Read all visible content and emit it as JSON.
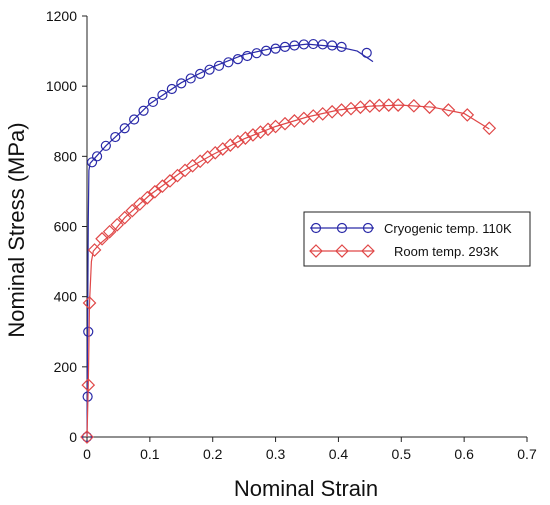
{
  "chart_data": {
    "type": "line",
    "title": "",
    "xlabel": "Nominal Strain",
    "ylabel": "Nominal Stress (MPa)",
    "xlim": [
      0,
      0.7
    ],
    "ylim": [
      0,
      1200
    ],
    "x_ticks": [
      0,
      0.1,
      0.2,
      0.3,
      0.4,
      0.5,
      0.6,
      0.7
    ],
    "x_tick_labels": [
      "0",
      "0.1",
      "0.2",
      "0.3",
      "0.4",
      "0.5",
      "0.6",
      "0.7"
    ],
    "y_ticks": [
      0,
      200,
      400,
      600,
      800,
      1000,
      1200
    ],
    "y_tick_labels": [
      "0",
      "200",
      "400",
      "600",
      "800",
      "1000",
      "1200"
    ],
    "grid": false,
    "legend_position": "center-right",
    "series": [
      {
        "name": "Cryogenic temp. 110K",
        "color": "#2a2aa8",
        "marker": "circle",
        "curve": [
          {
            "x": 0,
            "y": 0
          },
          {
            "x": 0.001,
            "y": 300
          },
          {
            "x": 0.002,
            "y": 620
          },
          {
            "x": 0.003,
            "y": 760
          },
          {
            "x": 0.005,
            "y": 780
          },
          {
            "x": 0.03,
            "y": 830
          },
          {
            "x": 0.06,
            "y": 880
          },
          {
            "x": 0.1,
            "y": 950
          },
          {
            "x": 0.15,
            "y": 1010
          },
          {
            "x": 0.2,
            "y": 1055
          },
          {
            "x": 0.25,
            "y": 1090
          },
          {
            "x": 0.3,
            "y": 1110
          },
          {
            "x": 0.35,
            "y": 1120
          },
          {
            "x": 0.4,
            "y": 1112
          },
          {
            "x": 0.43,
            "y": 1100
          },
          {
            "x": 0.455,
            "y": 1070
          }
        ],
        "markers": [
          {
            "x": 0,
            "y": 0
          },
          {
            "x": 0.001,
            "y": 115
          },
          {
            "x": 0.002,
            "y": 300
          },
          {
            "x": 0.008,
            "y": 783
          },
          {
            "x": 0.016,
            "y": 800
          },
          {
            "x": 0.03,
            "y": 830
          },
          {
            "x": 0.045,
            "y": 855
          },
          {
            "x": 0.06,
            "y": 880
          },
          {
            "x": 0.075,
            "y": 905
          },
          {
            "x": 0.09,
            "y": 930
          },
          {
            "x": 0.105,
            "y": 955
          },
          {
            "x": 0.12,
            "y": 975
          },
          {
            "x": 0.135,
            "y": 992
          },
          {
            "x": 0.15,
            "y": 1008
          },
          {
            "x": 0.165,
            "y": 1022
          },
          {
            "x": 0.18,
            "y": 1035
          },
          {
            "x": 0.195,
            "y": 1047
          },
          {
            "x": 0.21,
            "y": 1058
          },
          {
            "x": 0.225,
            "y": 1068
          },
          {
            "x": 0.24,
            "y": 1077
          },
          {
            "x": 0.255,
            "y": 1086
          },
          {
            "x": 0.27,
            "y": 1094
          },
          {
            "x": 0.285,
            "y": 1101
          },
          {
            "x": 0.3,
            "y": 1107
          },
          {
            "x": 0.315,
            "y": 1112
          },
          {
            "x": 0.33,
            "y": 1116
          },
          {
            "x": 0.345,
            "y": 1119
          },
          {
            "x": 0.36,
            "y": 1120
          },
          {
            "x": 0.375,
            "y": 1119
          },
          {
            "x": 0.39,
            "y": 1116
          },
          {
            "x": 0.405,
            "y": 1112
          },
          {
            "x": 0.445,
            "y": 1095
          }
        ]
      },
      {
        "name": "Room temp. 293K",
        "color": "#e04848",
        "marker": "diamond",
        "curve": [
          {
            "x": 0,
            "y": 0
          },
          {
            "x": 0.002,
            "y": 150
          },
          {
            "x": 0.004,
            "y": 380
          },
          {
            "x": 0.007,
            "y": 500
          },
          {
            "x": 0.01,
            "y": 530
          },
          {
            "x": 0.02,
            "y": 550
          },
          {
            "x": 0.04,
            "y": 580
          },
          {
            "x": 0.06,
            "y": 625
          },
          {
            "x": 0.1,
            "y": 690
          },
          {
            "x": 0.15,
            "y": 755
          },
          {
            "x": 0.2,
            "y": 805
          },
          {
            "x": 0.25,
            "y": 850
          },
          {
            "x": 0.3,
            "y": 885
          },
          {
            "x": 0.35,
            "y": 912
          },
          {
            "x": 0.4,
            "y": 932
          },
          {
            "x": 0.45,
            "y": 943
          },
          {
            "x": 0.5,
            "y": 946
          },
          {
            "x": 0.55,
            "y": 940
          },
          {
            "x": 0.6,
            "y": 922
          },
          {
            "x": 0.64,
            "y": 878
          }
        ],
        "markers": [
          {
            "x": 0,
            "y": 0
          },
          {
            "x": 0.002,
            "y": 148
          },
          {
            "x": 0.004,
            "y": 382
          },
          {
            "x": 0.012,
            "y": 533
          },
          {
            "x": 0.024,
            "y": 565
          },
          {
            "x": 0.036,
            "y": 585
          },
          {
            "x": 0.048,
            "y": 605
          },
          {
            "x": 0.06,
            "y": 625
          },
          {
            "x": 0.072,
            "y": 645
          },
          {
            "x": 0.084,
            "y": 664
          },
          {
            "x": 0.096,
            "y": 682
          },
          {
            "x": 0.108,
            "y": 699
          },
          {
            "x": 0.12,
            "y": 715
          },
          {
            "x": 0.132,
            "y": 730
          },
          {
            "x": 0.144,
            "y": 745
          },
          {
            "x": 0.156,
            "y": 760
          },
          {
            "x": 0.168,
            "y": 773
          },
          {
            "x": 0.18,
            "y": 786
          },
          {
            "x": 0.192,
            "y": 798
          },
          {
            "x": 0.204,
            "y": 810
          },
          {
            "x": 0.216,
            "y": 821
          },
          {
            "x": 0.228,
            "y": 832
          },
          {
            "x": 0.24,
            "y": 842
          },
          {
            "x": 0.252,
            "y": 852
          },
          {
            "x": 0.264,
            "y": 861
          },
          {
            "x": 0.276,
            "y": 869
          },
          {
            "x": 0.288,
            "y": 877
          },
          {
            "x": 0.3,
            "y": 885
          },
          {
            "x": 0.315,
            "y": 893
          },
          {
            "x": 0.33,
            "y": 901
          },
          {
            "x": 0.345,
            "y": 908
          },
          {
            "x": 0.36,
            "y": 915
          },
          {
            "x": 0.375,
            "y": 921
          },
          {
            "x": 0.39,
            "y": 927
          },
          {
            "x": 0.405,
            "y": 932
          },
          {
            "x": 0.42,
            "y": 936
          },
          {
            "x": 0.435,
            "y": 940
          },
          {
            "x": 0.45,
            "y": 943
          },
          {
            "x": 0.465,
            "y": 945
          },
          {
            "x": 0.48,
            "y": 946
          },
          {
            "x": 0.495,
            "y": 946
          },
          {
            "x": 0.52,
            "y": 944
          },
          {
            "x": 0.545,
            "y": 940
          },
          {
            "x": 0.575,
            "y": 932
          },
          {
            "x": 0.605,
            "y": 918
          },
          {
            "x": 0.64,
            "y": 880
          }
        ]
      }
    ]
  }
}
